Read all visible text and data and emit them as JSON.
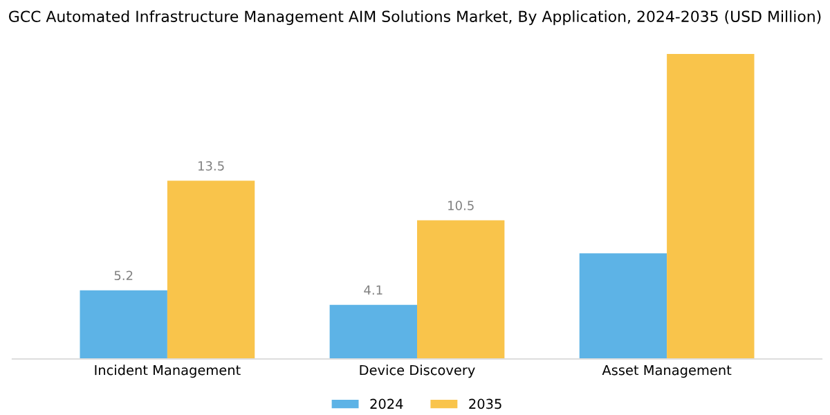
{
  "chart_data": {
    "type": "bar",
    "title": "GCC Automated Infrastructure Management AIM Solutions Market, By Application, 2024-2035 (USD Million)",
    "categories": [
      "Incident Management",
      "Device Discovery",
      "Asset Management"
    ],
    "series": [
      {
        "name": "2024",
        "color": "#5db3e6",
        "values": [
          5.2,
          4.1,
          8.0
        ],
        "value_labels": [
          "5.2",
          "4.1",
          null
        ]
      },
      {
        "name": "2035",
        "color": "#f9c44b",
        "values": [
          13.5,
          10.5,
          23.1
        ],
        "value_labels": [
          "13.5",
          "10.5",
          null
        ]
      }
    ],
    "tick_labels": "x",
    "grid": false,
    "legend": "bottom"
  }
}
